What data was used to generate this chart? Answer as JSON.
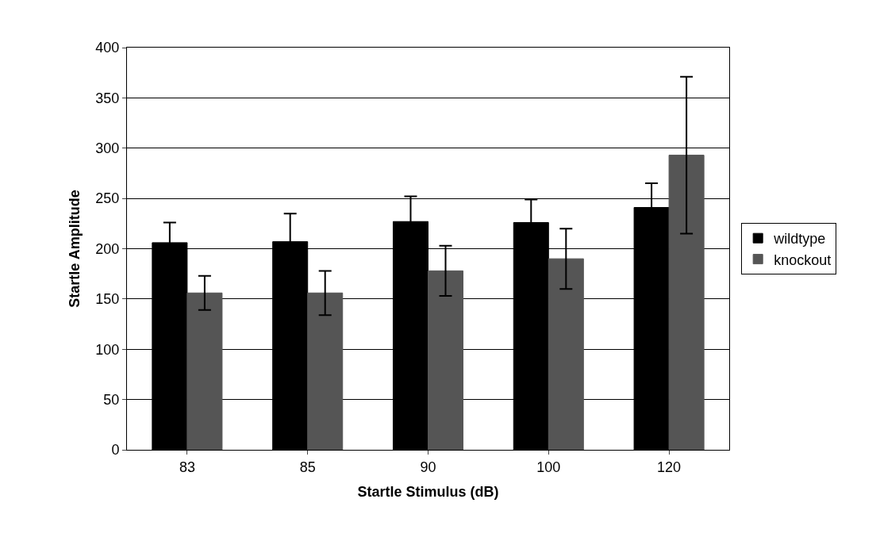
{
  "chart_data": {
    "type": "bar",
    "xlabel": "Startle Stimulus (dB)",
    "ylabel": "Startle Amplitude",
    "categories": [
      "83",
      "85",
      "90",
      "100",
      "120"
    ],
    "series": [
      {
        "name": "wildtype",
        "color": "#000000",
        "values": [
          206,
          207,
          227,
          226,
          241
        ],
        "errors": [
          20,
          28,
          25,
          23,
          24
        ]
      },
      {
        "name": "knockout",
        "color": "#555555",
        "values": [
          156,
          156,
          178,
          190,
          293
        ],
        "errors": [
          17,
          22,
          25,
          30,
          78
        ]
      }
    ],
    "ylim": [
      0,
      400
    ],
    "yticks": [
      0,
      50,
      100,
      150,
      200,
      250,
      300,
      350,
      400
    ],
    "grid": "y",
    "legend": "right"
  }
}
